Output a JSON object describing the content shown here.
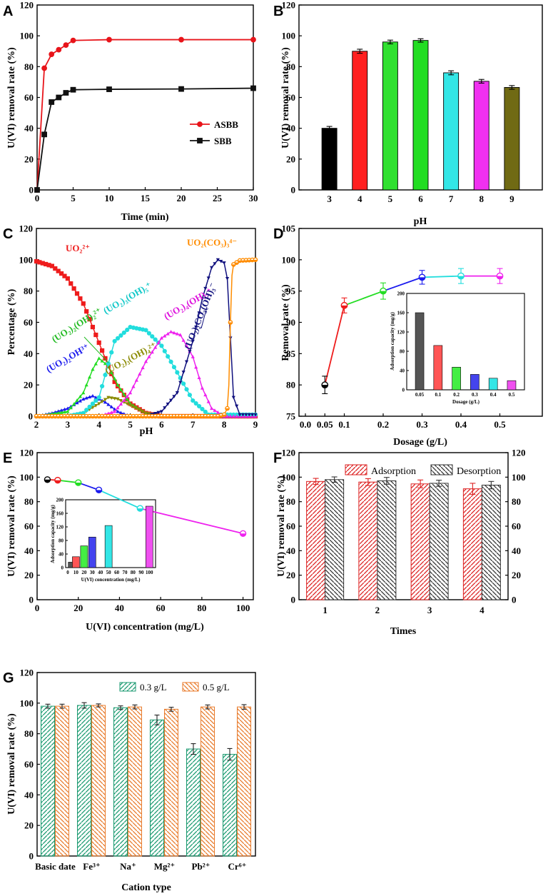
{
  "colors": {
    "asbb": "#e8141a",
    "sbb": "#111111",
    "red": "#ee1c1c",
    "green": "#22dd22",
    "cyan": "#22dddd",
    "magenta": "#ee22ee",
    "navy": "#10107e",
    "olive": "#8a8a00",
    "orange": "#ff8c00",
    "blue": "#1a1aee",
    "black": "#000000",
    "olive_bar": "#6f6a10",
    "hatch_red": "#dd2222",
    "hatch_green": "#1a9a70",
    "hatch_orange": "#e87a2a",
    "hatch_gray": "#333333"
  },
  "chart_data": [
    {
      "panel": "A",
      "type": "line",
      "xlabel": "Time (min)",
      "ylabel": "U(VI) removal rate (%)",
      "xlim": [
        0,
        30
      ],
      "ylim": [
        0,
        120
      ],
      "xticks": [
        0,
        5,
        10,
        15,
        20,
        25,
        30
      ],
      "yticks": [
        0,
        20,
        40,
        60,
        80,
        100,
        120
      ],
      "legend_position": "center-right",
      "series": [
        {
          "name": "ASBB",
          "marker": "circle",
          "x": [
            0,
            1,
            2,
            3,
            4,
            5,
            10,
            20,
            30
          ],
          "y": [
            0,
            79,
            88,
            91,
            94,
            97,
            97.5,
            97.5,
            97.5
          ]
        },
        {
          "name": "SBB",
          "marker": "square",
          "x": [
            0,
            1,
            2,
            3,
            4,
            5,
            10,
            20,
            30
          ],
          "y": [
            0,
            36,
            57,
            60,
            63,
            65,
            65.3,
            65.5,
            66
          ]
        }
      ]
    },
    {
      "panel": "B",
      "type": "bar",
      "xlabel": "pH",
      "ylabel": "U(VI) removal rate (%)",
      "ylim": [
        0,
        120
      ],
      "yticks": [
        0,
        20,
        40,
        60,
        80,
        100,
        120
      ],
      "categories": [
        "3",
        "4",
        "5",
        "6",
        "7",
        "8",
        "9"
      ],
      "values": [
        40,
        90,
        96,
        97,
        76,
        70.5,
        66.5
      ],
      "errors": [
        1.2,
        1.3,
        1.2,
        1.1,
        1.3,
        1.2,
        1.2
      ]
    },
    {
      "panel": "C",
      "type": "line",
      "xlabel": "pH",
      "ylabel": "Percentage (%)",
      "xlim": [
        2,
        9
      ],
      "ylim": [
        0,
        120
      ],
      "xticks": [
        2,
        3,
        4,
        5,
        6,
        7,
        8,
        9
      ],
      "yticks": [
        0,
        20,
        40,
        60,
        80,
        100,
        120
      ],
      "annotations": [
        "UO₂²⁺",
        "(UO₂)₂(OH)₂²⁺",
        "(UO₂)₃(OH)₅⁺",
        "(UO₂)₄(OH)₇⁺",
        "(UO₂)₂CO₃(OH)₃⁻",
        "UO₂(CO₃)₃⁴⁻",
        "(UO₂)₂OH³⁺",
        "(UO₂)₃(OH)₄²⁺"
      ],
      "series": [
        {
          "name": "UO2 2+",
          "x": [
            2,
            2.5,
            3,
            3.5,
            4,
            4.5,
            5,
            5.5,
            6
          ],
          "y": [
            99,
            96,
            88,
            72,
            47,
            22,
            8,
            2,
            0
          ]
        },
        {
          "name": "(UO2)2OH 3+",
          "x": [
            2,
            2.5,
            3,
            3.5,
            3.8,
            4.2,
            4.6,
            5
          ],
          "y": [
            0,
            2,
            5,
            11,
            13,
            9,
            3,
            0
          ]
        },
        {
          "name": "(UO2)2(OH)2 2+",
          "x": [
            2,
            3,
            3.5,
            3.8,
            4,
            4.3,
            4.6,
            5,
            5.5,
            6
          ],
          "y": [
            0,
            3,
            15,
            30,
            37,
            32,
            20,
            8,
            2,
            0
          ]
        },
        {
          "name": "(UO2)3(OH)4 2+",
          "x": [
            3,
            3.5,
            4,
            4.3,
            4.6,
            5,
            5.5,
            6
          ],
          "y": [
            0,
            2,
            8,
            12,
            11,
            7,
            2,
            0
          ]
        },
        {
          "name": "(UO2)3(OH)5 +",
          "x": [
            3,
            3.5,
            4,
            4.5,
            5,
            5.5,
            6,
            6.5,
            7,
            7.5
          ],
          "y": [
            0,
            2,
            12,
            48,
            57,
            55,
            45,
            28,
            10,
            1
          ]
        },
        {
          "name": "(UO2)4(OH)7 +",
          "x": [
            4,
            4.5,
            5,
            5.5,
            6,
            6.3,
            6.6,
            7,
            7.3,
            7.6,
            8
          ],
          "y": [
            0,
            3,
            15,
            35,
            50,
            54,
            52,
            38,
            18,
            5,
            0
          ]
        },
        {
          "name": "(UO2)2CO3(OH)3 -",
          "x": [
            5.5,
            6,
            6.5,
            7,
            7.3,
            7.6,
            7.8,
            8,
            8.1,
            8.2,
            8.3,
            8.5
          ],
          "y": [
            0,
            3,
            15,
            48,
            75,
            95,
            100,
            98,
            88,
            50,
            12,
            1
          ]
        },
        {
          "name": "UO2(CO3)3 4-",
          "x": [
            7.8,
            8,
            8.1,
            8.15,
            8.2,
            8.25,
            8.3,
            8.5,
            9
          ],
          "y": [
            0,
            1,
            5,
            20,
            60,
            90,
            97,
            99.5,
            100
          ]
        }
      ]
    },
    {
      "panel": "D",
      "type": "line",
      "xlabel": "Dosage (g/L)",
      "ylabel": "Removal rate (%)",
      "xlim": [
        0,
        0.6
      ],
      "ylim": [
        75,
        105
      ],
      "xtick_labels": [
        "0.0",
        "0.05",
        "0.1",
        "0.2",
        "0.3",
        "0.4",
        "0.5"
      ],
      "yticks": [
        75,
        80,
        85,
        90,
        95,
        100,
        105
      ],
      "x": [
        0.05,
        0.1,
        0.2,
        0.3,
        0.4,
        0.5
      ],
      "y": [
        80,
        92.7,
        95,
        97.2,
        97.4,
        97.4
      ],
      "errors": [
        1.4,
        1.2,
        1.3,
        1.1,
        1.2,
        1.2
      ],
      "inset": {
        "type": "bar",
        "xlabel": "Dosage (g/L)",
        "ylabel": "Adsorption capacity (mg/g)",
        "categories": [
          "0.05",
          "0.1",
          "0.2",
          "0.3",
          "0.4",
          "0.5"
        ],
        "values": [
          160,
          92,
          47,
          32,
          24,
          19
        ],
        "ylim": [
          0,
          200
        ],
        "yticks": [
          0,
          40,
          80,
          120,
          160,
          200
        ]
      }
    },
    {
      "panel": "E",
      "type": "line",
      "xlabel": "U(VI) concentration (mg/L)",
      "ylabel": "U(VI) removal rate (%)",
      "xlim": [
        0,
        105
      ],
      "ylim": [
        0,
        120
      ],
      "xticks": [
        0,
        20,
        40,
        60,
        80,
        100
      ],
      "yticks": [
        0,
        20,
        40,
        60,
        80,
        100,
        120
      ],
      "x": [
        5,
        10,
        20,
        30,
        50,
        100
      ],
      "y": [
        98,
        97.5,
        95.5,
        89.5,
        74.5,
        54
      ],
      "inset": {
        "type": "bar",
        "xlabel": "U(VI) concentration (mg/L)",
        "ylabel": "Adsorption capacity (mg/g)",
        "categories": [
          "5",
          "10",
          "20",
          "30",
          "50",
          "100"
        ],
        "x": [
          5,
          10,
          20,
          30,
          50,
          100
        ],
        "values": [
          16,
          32,
          64,
          90,
          124,
          181
        ],
        "ylim": [
          0,
          200
        ],
        "yticks": [
          0,
          40,
          80,
          120,
          160,
          200
        ],
        "xtick_labels": [
          "0",
          "10",
          "20",
          "30",
          "40",
          "50",
          "60",
          "70",
          "80",
          "90",
          "100"
        ]
      }
    },
    {
      "panel": "F",
      "type": "bar",
      "xlabel": "Times",
      "ylabel": "U(VI) removal rate (%)",
      "ylim": [
        0,
        120
      ],
      "yticks": [
        0,
        20,
        40,
        60,
        80,
        100,
        120
      ],
      "categories": [
        "1",
        "2",
        "3",
        "4"
      ],
      "series": [
        {
          "name": "Adsorption",
          "values": [
            96.5,
            96,
            94.5,
            90.5
          ],
          "errors": [
            2.5,
            2.8,
            3.2,
            4.5
          ]
        },
        {
          "name": "Desorption",
          "values": [
            98,
            97,
            95,
            93.5
          ],
          "errors": [
            2.2,
            2.8,
            2.5,
            3
          ]
        }
      ]
    },
    {
      "panel": "G",
      "type": "bar",
      "xlabel": "Cation type",
      "ylabel": "U(VI) removal rate  (%)",
      "ylim": [
        0,
        120
      ],
      "yticks": [
        0,
        20,
        40,
        60,
        80,
        100,
        120
      ],
      "categories": [
        "Basic date",
        "Fe³⁺",
        "Na⁺",
        "Mg²⁺",
        "Pb²⁺",
        "Cr⁶⁺"
      ],
      "series": [
        {
          "name": "0.3 g/L",
          "values": [
            98,
            98.5,
            97,
            89,
            70,
            66.5
          ],
          "errors": [
            1.3,
            1.8,
            1.2,
            3.2,
            3.5,
            3.8
          ]
        },
        {
          "name": "0.5 g/L",
          "values": [
            98,
            98.5,
            97.5,
            96,
            97.5,
            97.5
          ],
          "errors": [
            1.3,
            1,
            1.3,
            1.3,
            1.3,
            1.5
          ]
        }
      ]
    }
  ]
}
